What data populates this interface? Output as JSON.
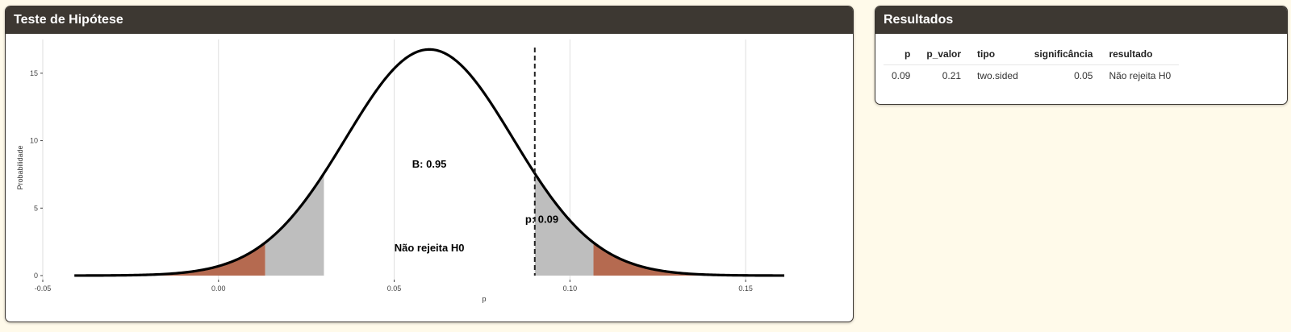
{
  "plot_panel": {
    "title": "Teste de Hipótese"
  },
  "results_panel": {
    "title": "Resultados",
    "columns": [
      "p",
      "p_valor",
      "tipo",
      "significância",
      "resultado"
    ],
    "rows": [
      {
        "p": "0.09",
        "p_valor": "0.21",
        "tipo": "two.sided",
        "significancia": "0.05",
        "resultado": "Não rejeita H0"
      }
    ]
  },
  "chart_data": {
    "type": "area",
    "xlabel": "p",
    "ylabel": "Probabilidade",
    "xlim": [
      -0.05,
      0.175
    ],
    "ylim": [
      -0.3,
      17.5
    ],
    "x_ticks": [
      -0.05,
      0.0,
      0.05,
      0.1,
      0.15
    ],
    "x_tick_labels": [
      "-0.05",
      "0.00",
      "0.05",
      "0.10",
      "0.15"
    ],
    "y_ticks": [
      0,
      5,
      10,
      15
    ],
    "y_tick_labels": [
      "0",
      "5",
      "10",
      "15"
    ],
    "grid": "vertical-major",
    "curve": {
      "type": "normal",
      "mean": 0.06,
      "sd": 0.0238,
      "x_range": [
        -0.041,
        0.161
      ],
      "color": "#000000"
    },
    "rejection_regions": [
      {
        "from": -0.041,
        "to": 0.0133,
        "color": "#b56a50"
      },
      {
        "from": 0.1067,
        "to": 0.161,
        "color": "#b56a50"
      }
    ],
    "beta_regions": [
      {
        "from": 0.0133,
        "to": 0.03,
        "color": "#bebebe"
      },
      {
        "from": 0.09,
        "to": 0.1067,
        "color": "#bebebe"
      }
    ],
    "observed_line": {
      "x": 0.09,
      "style": "dashed"
    },
    "annotations": [
      {
        "text": "B: 0.95",
        "x": 0.06,
        "y": 8.3
      },
      {
        "text": "p: 0.09",
        "x": 0.092,
        "y": 4.2
      },
      {
        "text": "Não rejeita H0",
        "x": 0.06,
        "y": 2.1
      }
    ]
  }
}
